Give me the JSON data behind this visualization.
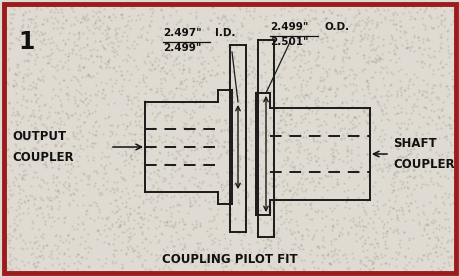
{
  "bg_color": "#e8e4dc",
  "border_color": "#9b1c1c",
  "border_linewidth": 3.5,
  "fig_bg": "#e0dbd2",
  "number_label": "1",
  "title_label": "COUPLING PILOT FIT",
  "id_top": "2.497\"",
  "id_bot": "2.499\"",
  "od_top": "2.499\"",
  "od_bot": "2.501\"",
  "id_label": "I.D.",
  "od_label": "O.D.",
  "left_label1": "OUTPUT",
  "left_label2": "COUPLER",
  "right_label1": "SHAFT",
  "right_label2": "COUPLER",
  "line_color": "#1a1a1a",
  "dash_color": "#1a1a1a",
  "text_color": "#111111"
}
